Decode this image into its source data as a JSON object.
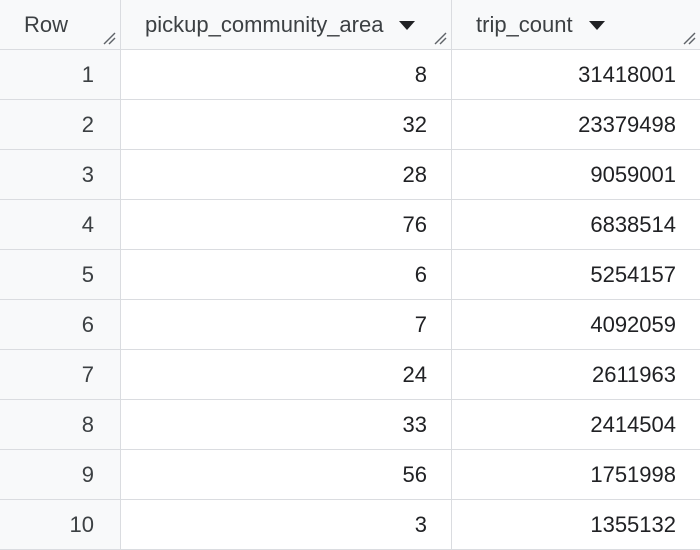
{
  "table": {
    "columns": [
      {
        "label": "Row"
      },
      {
        "label": "pickup_community_area"
      },
      {
        "label": "trip_count"
      }
    ],
    "rows": [
      {
        "row": "1",
        "pickup_community_area": "8",
        "trip_count": "31418001"
      },
      {
        "row": "2",
        "pickup_community_area": "32",
        "trip_count": "23379498"
      },
      {
        "row": "3",
        "pickup_community_area": "28",
        "trip_count": "9059001"
      },
      {
        "row": "4",
        "pickup_community_area": "76",
        "trip_count": "6838514"
      },
      {
        "row": "5",
        "pickup_community_area": "6",
        "trip_count": "5254157"
      },
      {
        "row": "6",
        "pickup_community_area": "7",
        "trip_count": "4092059"
      },
      {
        "row": "7",
        "pickup_community_area": "24",
        "trip_count": "2611963"
      },
      {
        "row": "8",
        "pickup_community_area": "33",
        "trip_count": "2414504"
      },
      {
        "row": "9",
        "pickup_community_area": "56",
        "trip_count": "1751998"
      },
      {
        "row": "10",
        "pickup_community_area": "3",
        "trip_count": "1355132"
      }
    ]
  },
  "icons": {
    "sort": "sort-down-icon",
    "resize": "resize-handle-icon"
  },
  "colors": {
    "header_bg": "#f8f9fa",
    "border": "#dadce0",
    "text": "#202124"
  }
}
